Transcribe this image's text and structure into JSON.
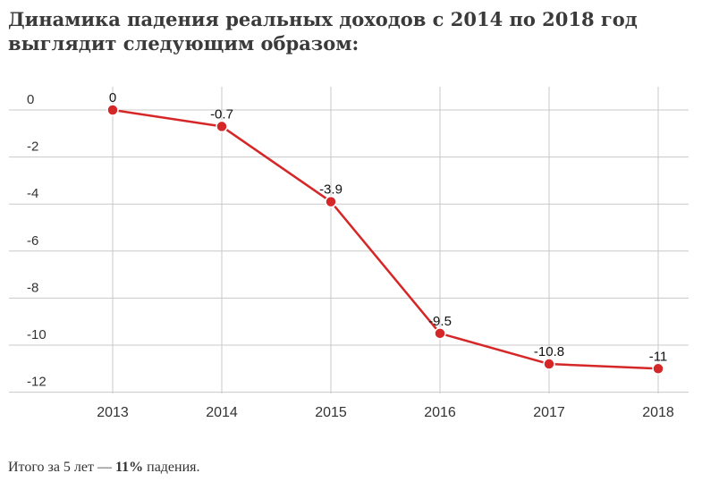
{
  "heading": "Динамика падения реальных доходов с 2014 по 2018 год выглядит следующим образом:",
  "footer": {
    "prefix": "Итого за 5 лет — ",
    "highlight": "11%",
    "suffix": " падения."
  },
  "chart_data": {
    "type": "line",
    "categories": [
      "2013",
      "2014",
      "2015",
      "2016",
      "2017",
      "2018"
    ],
    "series": [
      {
        "values": [
          0,
          -0.7,
          -3.9,
          -9.5,
          -10.8,
          -11
        ],
        "color": "#d62728"
      }
    ],
    "data_labels": [
      "0",
      "-0.7",
      "-3.9",
      "-9.5",
      "-10.8",
      "-11"
    ],
    "yticks": [
      0,
      -2,
      -4,
      -6,
      -8,
      -10,
      -12
    ],
    "ytick_labels": [
      "0",
      "-2",
      "-4",
      "-6",
      "-8",
      "-10",
      "-12"
    ],
    "ylim": [
      -12,
      0
    ],
    "grid": true,
    "title": "",
    "xlabel": "",
    "ylabel": ""
  }
}
